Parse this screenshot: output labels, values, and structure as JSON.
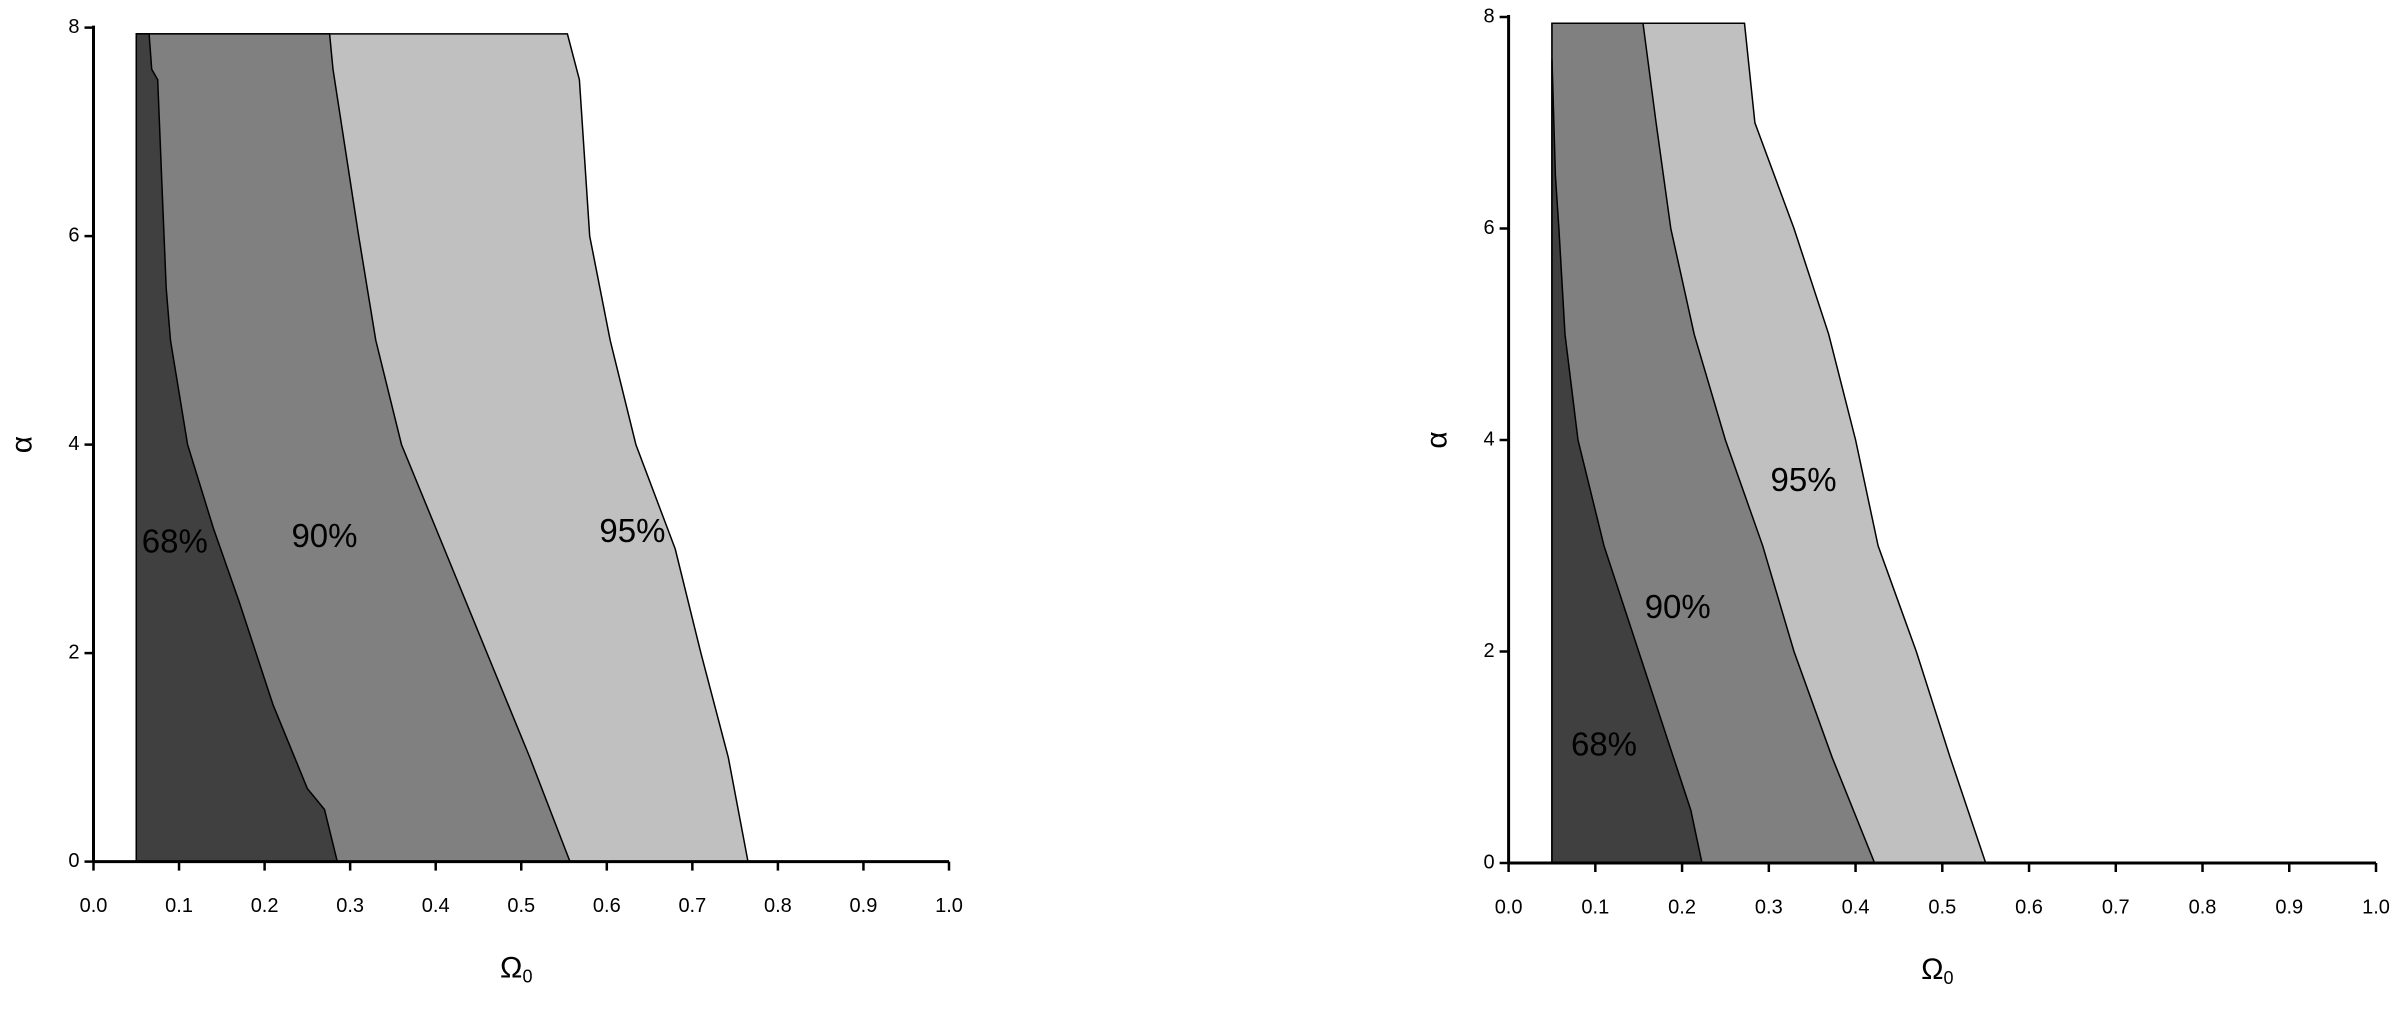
{
  "chart_data": [
    {
      "type": "contour",
      "xlabel": "Ω",
      "xlabel_sub": "0",
      "ylabel": "α",
      "xlim": [
        0,
        1
      ],
      "ylim": [
        0,
        8
      ],
      "xticks": [
        {
          "value": 0,
          "label": "0.0"
        },
        0.1,
        0.2,
        0.3,
        0.4,
        0.5,
        0.6,
        0.7,
        0.8,
        0.9,
        {
          "value": 1,
          "label": "1.0"
        }
      ],
      "yticks": [
        0,
        2,
        4,
        6,
        8
      ],
      "series": [
        {
          "name": "95%",
          "color": "#c0c0c0",
          "x": [
            0.05,
            0.05,
            0.554,
            0.568,
            0.58,
            0.604,
            0.634,
            0.68,
            0.71,
            0.742,
            0.765
          ],
          "y": [
            0,
            7.94,
            7.94,
            7.5,
            6,
            5,
            4,
            3,
            2,
            1,
            0
          ]
        },
        {
          "name": "90%",
          "color": "#808080",
          "x": [
            0.05,
            0.05,
            0.276,
            0.28,
            0.31,
            0.33,
            0.36,
            0.41,
            0.46,
            0.51,
            0.557
          ],
          "y": [
            0,
            7.94,
            7.94,
            7.6,
            6,
            5,
            4,
            3,
            2,
            1,
            0
          ]
        },
        {
          "name": "68%",
          "color": "#404040",
          "x": [
            0.05,
            0.05,
            0.065,
            0.068,
            0.075,
            0.08,
            0.085,
            0.09,
            0.11,
            0.14,
            0.17,
            0.21,
            0.25,
            0.27,
            0.285
          ],
          "y": [
            0,
            7.94,
            7.94,
            7.6,
            7.5,
            6.5,
            5.5,
            5,
            4,
            3.2,
            2.5,
            1.5,
            0.7,
            0.5,
            0
          ]
        }
      ]
    },
    {
      "type": "contour",
      "xlabel": "Ω",
      "xlabel_sub": "0",
      "ylabel": "α",
      "xlim": [
        0,
        1
      ],
      "ylim": [
        0,
        8
      ],
      "xticks": [
        {
          "value": 0,
          "label": "0.0"
        },
        0.1,
        0.2,
        0.3,
        0.4,
        0.5,
        0.6,
        0.7,
        0.8,
        0.9,
        {
          "value": 1,
          "label": "1.0"
        }
      ],
      "yticks": [
        0,
        2,
        4,
        6,
        8
      ],
      "series": [
        {
          "name": "95%",
          "color": "#c0c0c0",
          "x": [
            0.05,
            0.05,
            0.272,
            0.284,
            0.329,
            0.369,
            0.4,
            0.426,
            0.47,
            0.509,
            0.55
          ],
          "y": [
            0,
            7.94,
            7.94,
            7,
            6,
            5,
            4,
            3,
            2,
            1,
            0
          ]
        },
        {
          "name": "90%",
          "color": "#808080",
          "x": [
            0.05,
            0.05,
            0.155,
            0.17,
            0.187,
            0.214,
            0.25,
            0.293,
            0.329,
            0.373,
            0.422
          ],
          "y": [
            0,
            7.94,
            7.94,
            7,
            6,
            5,
            4,
            3,
            2,
            1,
            0
          ]
        },
        {
          "name": "68%",
          "color": "#404040",
          "x": [
            0.05,
            0.05,
            0.054,
            0.058,
            0.065,
            0.08,
            0.11,
            0.15,
            0.19,
            0.21,
            0.223
          ],
          "y": [
            0,
            7.6,
            6.5,
            6,
            5,
            4,
            3,
            2,
            1,
            0.5,
            0
          ]
        }
      ]
    }
  ]
}
